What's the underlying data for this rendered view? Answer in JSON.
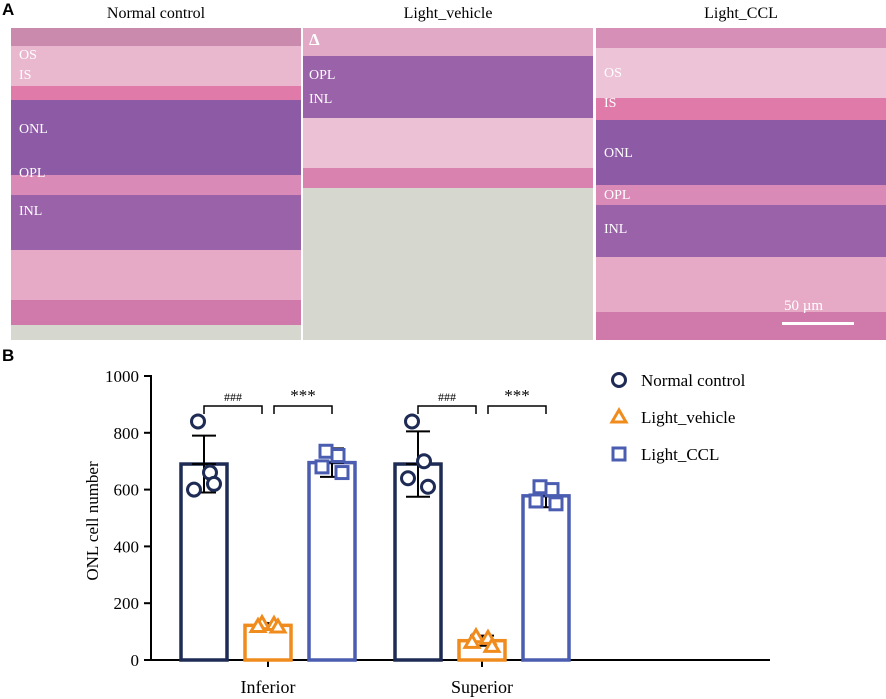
{
  "panel_a": {
    "letter": "A",
    "panels": [
      {
        "title": "Normal control",
        "layers": [
          "OS",
          "IS",
          "ONL",
          "OPL",
          "INL"
        ]
      },
      {
        "title": "Light_vehicle",
        "marker": "Δ",
        "layers": [
          "OPL",
          "INL"
        ]
      },
      {
        "title": "Light_CCL",
        "layers": [
          "OS",
          "IS",
          "ONL",
          "OPL",
          "INL"
        ]
      }
    ],
    "scale_bar": "50 µm"
  },
  "panel_b": {
    "letter": "B",
    "ylabel": "ONL cell number",
    "significance": {
      "hash": "###",
      "star": "***"
    }
  },
  "colors": {
    "normal": "#1e2b55",
    "vehicle": "#f08c1e",
    "ccl": "#4a5db0",
    "tissue_pink": "#e07aa8",
    "nuclei": "#6a3f9a",
    "background_gray": "#d6d7cf"
  },
  "chart_data": {
    "type": "bar",
    "categories": [
      "Inferior",
      "Superior"
    ],
    "ylim": [
      0,
      1000
    ],
    "yticks": [
      0,
      200,
      400,
      600,
      800,
      1000
    ],
    "ylabel": "ONL cell number",
    "xlabel": "",
    "legend_position": "right",
    "series": [
      {
        "name": "Normal control",
        "marker": "circle",
        "color": "#1e2b55",
        "values": [
          690,
          690
        ],
        "errors": [
          100,
          115
        ],
        "points": [
          [
            840,
            660,
            600,
            620
          ],
          [
            840,
            700,
            640,
            610
          ]
        ]
      },
      {
        "name": "Light_vehicle",
        "marker": "triangle",
        "color": "#f08c1e",
        "values": [
          122,
          68
        ],
        "errors": [
          8,
          18
        ],
        "points": [
          [
            128,
            125,
            118,
            116
          ],
          [
            82,
            76,
            62,
            48
          ]
        ]
      },
      {
        "name": "Light_CCL",
        "marker": "square",
        "color": "#4a5db0",
        "values": [
          695,
          578
        ],
        "errors": [
          50,
          40
        ],
        "points": [
          [
            735,
            720,
            680,
            660
          ],
          [
            610,
            600,
            560,
            550
          ]
        ]
      }
    ],
    "annotations": [
      "###",
      "***",
      "###",
      "***"
    ]
  }
}
